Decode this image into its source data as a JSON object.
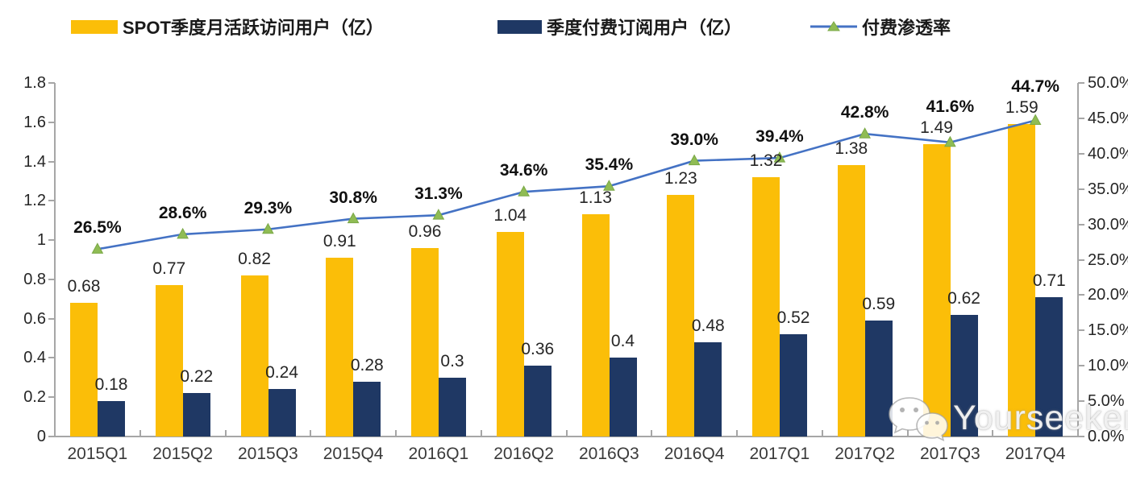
{
  "legend": [
    {
      "label": "SPOT季度月活跃访问用户（亿）",
      "swatch": "bar",
      "color": "#FBBE08"
    },
    {
      "label": "季度付费订阅用户（亿）",
      "swatch": "bar",
      "color": "#1F3864"
    },
    {
      "label": "付费渗透率",
      "swatch": "line",
      "color": "#4472C4",
      "marker_color": "#8FBC54"
    }
  ],
  "chart_data": {
    "type": "bar",
    "subtype": "grouped-bars-with-line-overlay",
    "categories": [
      "2015Q1",
      "2015Q2",
      "2015Q3",
      "2015Q4",
      "2016Q1",
      "2016Q2",
      "2016Q3",
      "2016Q4",
      "2017Q1",
      "2017Q2",
      "2017Q3",
      "2017Q4"
    ],
    "series": [
      {
        "name": "SPOT季度月活跃访问用户（亿）",
        "type": "bar",
        "axis": "left",
        "color": "#FBBE08",
        "values": [
          0.68,
          0.77,
          0.82,
          0.91,
          0.96,
          1.04,
          1.13,
          1.23,
          1.32,
          1.38,
          1.49,
          1.59
        ],
        "labels": [
          "0.68",
          "0.77",
          "0.82",
          "0.91",
          "0.96",
          "1.04",
          "1.13",
          "1.23",
          "1.32",
          "1.38",
          "1.49",
          "1.59"
        ]
      },
      {
        "name": "季度付费订阅用户（亿）",
        "type": "bar",
        "axis": "left",
        "color": "#1F3864",
        "values": [
          0.18,
          0.22,
          0.24,
          0.28,
          0.3,
          0.36,
          0.4,
          0.48,
          0.52,
          0.59,
          0.62,
          0.71
        ],
        "labels": [
          "0.18",
          "0.22",
          "0.24",
          "0.28",
          "0.3",
          "0.36",
          "0.4",
          "0.48",
          "0.52",
          "0.59",
          "0.62",
          "0.71"
        ]
      },
      {
        "name": "付费渗透率",
        "type": "line",
        "axis": "right",
        "color": "#4472C4",
        "marker": "triangle",
        "marker_color": "#8FBC54",
        "values": [
          26.5,
          28.6,
          29.3,
          30.8,
          31.3,
          34.6,
          35.4,
          39.0,
          39.4,
          42.8,
          41.6,
          44.7
        ],
        "labels": [
          "26.5%",
          "28.6%",
          "29.3%",
          "30.8%",
          "31.3%",
          "34.6%",
          "35.4%",
          "39.0%",
          "39.4%",
          "42.8%",
          "41.6%",
          "44.7%"
        ]
      }
    ],
    "left_axis": {
      "min": 0,
      "max": 1.8,
      "ticks": [
        "1.8",
        "1.6",
        "1.4",
        "1.2",
        "1",
        "0.8",
        "0.6",
        "0.4",
        "0.2",
        "0"
      ]
    },
    "right_axis": {
      "min": 0,
      "max": 50,
      "ticks": [
        "50.0%",
        "45.0%",
        "40.0%",
        "35.0%",
        "30.0%",
        "25.0%",
        "20.0%",
        "15.0%",
        "10.0%",
        "5.0%",
        "0.0%"
      ]
    },
    "grid": false,
    "legend_position": "top"
  },
  "watermark": {
    "text": "Yourseeker",
    "icon": "wechat-icon"
  }
}
